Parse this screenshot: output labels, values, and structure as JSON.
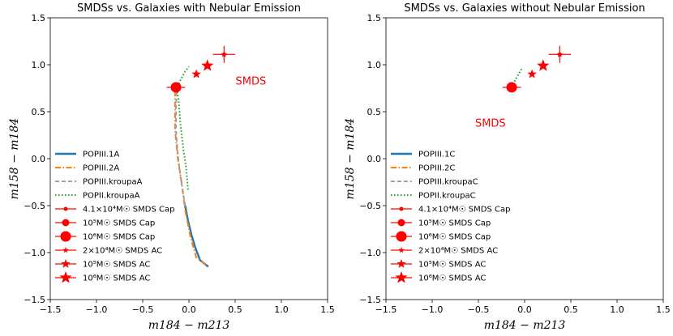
{
  "chart_data": [
    {
      "type": "scatter",
      "title": "SMDSs vs. Galaxies with Nebular Emission",
      "xlabel": "m184 − m213",
      "ylabel": "m158 − m184",
      "xlim": [
        -1.5,
        1.5
      ],
      "ylim": [
        -1.5,
        1.5
      ],
      "xticks": [
        "−1.5",
        "−1.0",
        "−0.5",
        "0.0",
        "0.5",
        "1.0",
        "1.5"
      ],
      "yticks": [
        "1.5",
        "1.0",
        "0.5",
        "0.0",
        "−0.5",
        "−1.0",
        "−1.5"
      ],
      "annotation": {
        "text": "SMDS",
        "x": 0.67,
        "y": 0.79
      },
      "series": [
        {
          "name": "POPIII.1A",
          "style": "solid",
          "color": "#1f77b4",
          "points": [
            [
              0.21,
              -1.15
            ],
            [
              0.12,
              -1.08
            ],
            [
              0.07,
              -0.95
            ],
            [
              0.03,
              -0.82
            ],
            [
              -0.01,
              -0.66
            ],
            [
              -0.04,
              -0.5
            ]
          ]
        },
        {
          "name": "POPIII.2A",
          "style": "dashdot",
          "color": "#ff7f0e",
          "points": [
            [
              0.18,
              -1.13
            ],
            [
              0.08,
              -1.05
            ],
            [
              0.04,
              -0.92
            ],
            [
              0.01,
              -0.8
            ],
            [
              -0.04,
              -0.55
            ],
            [
              -0.08,
              -0.25
            ],
            [
              -0.12,
              0.0
            ],
            [
              -0.15,
              0.3
            ],
            [
              -0.15,
              0.6
            ],
            [
              -0.15,
              0.76
            ]
          ]
        },
        {
          "name": "POPIII.kroupaA",
          "style": "dashed",
          "color": "#a0a0a0",
          "points": [
            [
              -0.04,
              -0.5
            ],
            [
              -0.09,
              -0.2
            ],
            [
              -0.12,
              0.05
            ],
            [
              -0.14,
              0.3
            ],
            [
              -0.14,
              0.55
            ],
            [
              -0.13,
              0.76
            ]
          ]
        },
        {
          "name": "POPII.kroupaA",
          "style": "dotted",
          "color": "#2ca02c",
          "points": [
            [
              -0.01,
              -0.33
            ],
            [
              -0.03,
              -0.1
            ],
            [
              -0.06,
              0.1
            ],
            [
              -0.09,
              0.35
            ],
            [
              -0.11,
              0.6
            ],
            [
              -0.13,
              0.75
            ],
            [
              -0.09,
              0.84
            ],
            [
              -0.04,
              0.93
            ],
            [
              0.0,
              0.98
            ]
          ]
        },
        {
          "name": "4.1×10⁴M☉ SMDS Cap",
          "marker": "circle-small",
          "color": "#ff0000",
          "points": [
            [
              0.38,
              1.11
            ]
          ],
          "xerr": 0.12,
          "yerr": 0.09
        },
        {
          "name": "10⁵M☉ SMDS Cap",
          "marker": "circle-medium",
          "color": "#ff0000",
          "points": [
            [
              -0.14,
              0.76
            ]
          ],
          "xerr": 0.1,
          "yerr": 0.03
        },
        {
          "name": "10⁶M☉ SMDS Cap",
          "marker": "circle-large",
          "color": "#ff0000",
          "points": [
            [
              -0.14,
              0.76
            ]
          ]
        },
        {
          "name": "2×10⁴M☉ SMDS AC",
          "marker": "star-small",
          "color": "#ff0000",
          "points": [
            [
              0.38,
              1.11
            ]
          ]
        },
        {
          "name": "10⁵M☉ SMDS AC",
          "marker": "star-medium",
          "color": "#ff0000",
          "points": [
            [
              0.08,
              0.9
            ]
          ]
        },
        {
          "name": "10⁶M☉ SMDS AC",
          "marker": "star-large",
          "color": "#ff0000",
          "points": [
            [
              0.2,
              0.99
            ]
          ]
        }
      ],
      "legend": {
        "position": "lower-left",
        "entries": [
          "POPIII.1A",
          "POPIII.2A",
          "POPIII.kroupaA",
          "POPII.kroupaA",
          "4.1×10⁴M☉ SMDS Cap",
          "10⁵M☉ SMDS Cap",
          "10⁶M☉ SMDS Cap",
          "2×10⁴M☉ SMDS AC",
          "10⁵M☉ SMDS AC",
          "10⁶M☉ SMDS AC"
        ]
      }
    },
    {
      "type": "scatter",
      "title": "SMDSs vs. Galaxies without Nebular Emission",
      "xlabel": "m184 − m213",
      "ylabel": "m158 − m184",
      "xlim": [
        -1.5,
        1.5
      ],
      "ylim": [
        -1.5,
        1.5
      ],
      "xticks": [
        "−1.5",
        "−1.0",
        "−0.5",
        "0.0",
        "0.5",
        "1.0",
        "1.5"
      ],
      "yticks": [
        "1.5",
        "1.0",
        "0.5",
        "0.0",
        "−0.5",
        "−1.0",
        "−1.5"
      ],
      "annotation": {
        "text": "SMDS",
        "x": -0.37,
        "y": 0.34
      },
      "series": [
        {
          "name": "POPIII.1C",
          "style": "solid",
          "color": "#1f77b4",
          "points": []
        },
        {
          "name": "POPIII.2C",
          "style": "dashdot",
          "color": "#ff7f0e",
          "points": []
        },
        {
          "name": "POPIII.kroupaC",
          "style": "dashed",
          "color": "#a0a0a0",
          "points": []
        },
        {
          "name": "POPII.kroupaC",
          "style": "dotted",
          "color": "#2ca02c",
          "points": [
            [
              -0.14,
              0.76
            ],
            [
              -0.1,
              0.84
            ],
            [
              -0.06,
              0.91
            ],
            [
              -0.03,
              0.96
            ]
          ]
        },
        {
          "name": "4.1×10⁴M☉ SMDS Cap",
          "marker": "circle-small",
          "color": "#ff0000",
          "points": [
            [
              0.38,
              1.11
            ]
          ],
          "xerr": 0.12,
          "yerr": 0.09
        },
        {
          "name": "10⁵M☉ SMDS Cap",
          "marker": "circle-medium",
          "color": "#ff0000",
          "points": [
            [
              -0.14,
              0.76
            ]
          ],
          "xerr": 0.1,
          "yerr": 0.03
        },
        {
          "name": "10⁶M☉ SMDS Cap",
          "marker": "circle-large",
          "color": "#ff0000",
          "points": [
            [
              -0.14,
              0.76
            ]
          ]
        },
        {
          "name": "2×10⁴M☉ SMDS AC",
          "marker": "star-small",
          "color": "#ff0000",
          "points": [
            [
              0.38,
              1.11
            ]
          ]
        },
        {
          "name": "10⁵M☉ SMDS AC",
          "marker": "star-medium",
          "color": "#ff0000",
          "points": [
            [
              0.08,
              0.9
            ]
          ]
        },
        {
          "name": "10⁶M☉ SMDS AC",
          "marker": "star-large",
          "color": "#ff0000",
          "points": [
            [
              0.2,
              0.99
            ]
          ]
        }
      ],
      "legend": {
        "position": "lower-left",
        "entries": [
          "POPIII.1C",
          "POPIII.2C",
          "POPIII.kroupaC",
          "POPII.kroupaC",
          "4.1×10⁴M☉ SMDS Cap",
          "10⁵M☉ SMDS Cap",
          "10⁶M☉ SMDS Cap",
          "2×10⁴M☉ SMDS AC",
          "10⁵M☉ SMDS AC",
          "10⁶M☉ SMDS AC"
        ]
      }
    }
  ]
}
